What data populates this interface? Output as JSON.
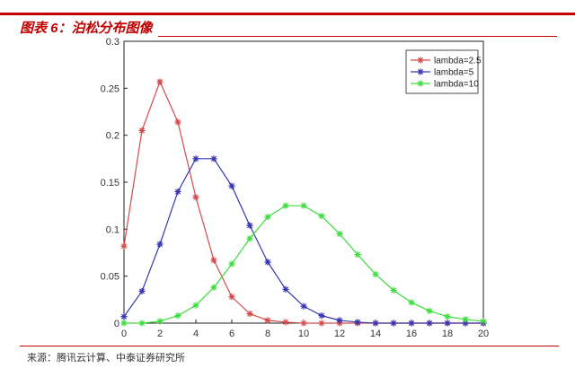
{
  "header": {
    "figure_title": "图表 6：泊松分布图像"
  },
  "footer": {
    "source": "来源：腾讯云计算、中泰证券研究所"
  },
  "chart_data": {
    "type": "line",
    "title": "",
    "xlabel": "",
    "ylabel": "",
    "xlim": [
      0,
      20
    ],
    "ylim": [
      0,
      0.3
    ],
    "xticks": [
      0,
      2,
      4,
      6,
      8,
      10,
      12,
      14,
      16,
      18,
      20
    ],
    "yticks": [
      0,
      0.05,
      0.1,
      0.15,
      0.2,
      0.25,
      0.3
    ],
    "x": [
      0,
      1,
      2,
      3,
      4,
      5,
      6,
      7,
      8,
      9,
      10,
      11,
      12,
      13,
      14,
      15,
      16,
      17,
      18,
      19,
      20
    ],
    "marker": "asterisk",
    "grid": false,
    "legend_position": "top-right",
    "series": [
      {
        "name": "lambda=2.5",
        "color": "#d44a4a",
        "values": [
          0.082,
          0.205,
          0.257,
          0.214,
          0.134,
          0.067,
          0.028,
          0.01,
          0.003,
          0.001,
          0.0,
          0.0,
          0.0,
          0.0,
          0.0,
          0.0,
          0.0,
          0.0,
          0.0,
          0.0,
          0.0
        ]
      },
      {
        "name": "lambda=5",
        "color": "#3535b0",
        "values": [
          0.007,
          0.034,
          0.084,
          0.14,
          0.175,
          0.175,
          0.146,
          0.104,
          0.065,
          0.036,
          0.018,
          0.008,
          0.003,
          0.001,
          0.0,
          0.0,
          0.0,
          0.0,
          0.0,
          0.0,
          0.0
        ]
      },
      {
        "name": "lambda=10",
        "color": "#3ddc3d",
        "values": [
          0.0,
          0.0,
          0.002,
          0.008,
          0.019,
          0.038,
          0.063,
          0.09,
          0.113,
          0.125,
          0.125,
          0.114,
          0.095,
          0.073,
          0.052,
          0.035,
          0.022,
          0.013,
          0.007,
          0.004,
          0.002
        ]
      }
    ]
  }
}
